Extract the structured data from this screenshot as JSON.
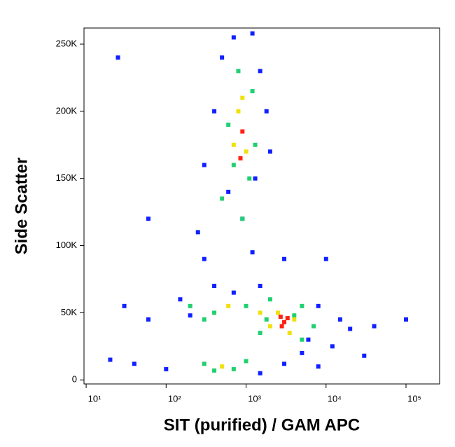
{
  "chart_data": {
    "type": "scatter",
    "x_label": "SIT (purified) / GAM APC",
    "y_label": "Side Scatter",
    "xscale": "log",
    "xlim": [
      9.4,
      263000
    ],
    "xticks": [
      {
        "value": 10,
        "label": "10¹"
      },
      {
        "value": 100,
        "label": "10²"
      },
      {
        "value": 1000,
        "label": "10³"
      },
      {
        "value": 10000,
        "label": "10⁴"
      },
      {
        "value": 100000,
        "label": "10⁵"
      }
    ],
    "ylim": [
      -3000,
      262000
    ],
    "yticks": [
      {
        "value": 0,
        "label": "0"
      },
      {
        "value": 50000,
        "label": "50K"
      },
      {
        "value": 100000,
        "label": "100K"
      },
      {
        "value": 150000,
        "label": "150K"
      },
      {
        "value": 200000,
        "label": "200K"
      },
      {
        "value": 250000,
        "label": "250K"
      }
    ],
    "series": [
      {
        "color": "#1020ff",
        "x": [
          30,
          60,
          150,
          200,
          400,
          700,
          1500,
          8000,
          15000,
          20000,
          6000,
          300,
          1200,
          900,
          600,
          1300,
          400,
          500,
          1500,
          1800,
          700,
          1200,
          2000,
          300,
          250,
          20,
          40,
          100,
          1500,
          3000,
          5000,
          12000,
          40000,
          100000,
          25,
          3000,
          10000,
          60,
          30000,
          8000
        ],
        "values": [
          55000,
          45000,
          60000,
          48000,
          70000,
          65000,
          70000,
          55000,
          45000,
          38000,
          30000,
          90000,
          95000,
          120000,
          140000,
          150000,
          200000,
          240000,
          230000,
          200000,
          255000,
          258000,
          170000,
          160000,
          110000,
          15000,
          12000,
          8000,
          5000,
          12000,
          20000,
          25000,
          40000,
          45000,
          240000,
          90000,
          90000,
          120000,
          18000,
          10000
        ]
      },
      {
        "color": "#20d070",
        "x": [
          700,
          1100,
          600,
          1200,
          800,
          900,
          500,
          1300,
          200,
          400,
          300,
          1000,
          5000,
          7000,
          1500,
          2000,
          5000,
          300,
          700,
          1000,
          400,
          4000,
          1800
        ],
        "values": [
          160000,
          150000,
          190000,
          215000,
          230000,
          120000,
          135000,
          175000,
          55000,
          50000,
          45000,
          55000,
          55000,
          40000,
          35000,
          60000,
          30000,
          12000,
          8000,
          14000,
          7000,
          48000,
          45000
        ]
      },
      {
        "color": "#f0e010",
        "x": [
          800,
          1000,
          700,
          900,
          2500,
          3500,
          4000,
          2000,
          500,
          1500,
          600
        ],
        "values": [
          200000,
          170000,
          175000,
          210000,
          50000,
          35000,
          45000,
          40000,
          10000,
          50000,
          55000
        ]
      },
      {
        "color": "#ff2010",
        "x": [
          900,
          850,
          3000,
          2800,
          3300,
          2700
        ],
        "values": [
          185000,
          165000,
          43000,
          40000,
          46000,
          47000
        ]
      }
    ]
  }
}
